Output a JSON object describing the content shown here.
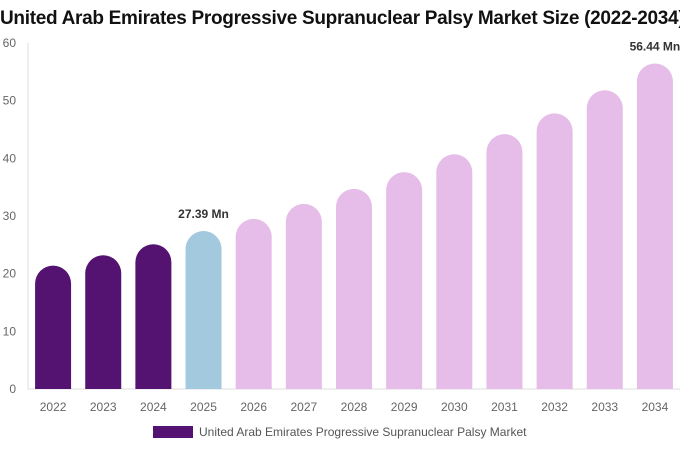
{
  "chart_data": {
    "type": "bar",
    "title": "United Arab Emirates Progressive Supranuclear Palsy Market Size (2022-2034)",
    "categories": [
      "2022",
      "2023",
      "2024",
      "2025",
      "2026",
      "2027",
      "2028",
      "2029",
      "2030",
      "2031",
      "2032",
      "2033",
      "2034"
    ],
    "series": [
      {
        "name": "United Arab Emirates Progressive Supranuclear Palsy Market",
        "values": [
          21.4,
          23.2,
          25.1,
          27.39,
          29.5,
          32.1,
          34.7,
          37.6,
          40.7,
          44.2,
          47.8,
          51.8,
          56.44
        ]
      }
    ],
    "data_labels": {
      "3": "27.39 Mn",
      "12": "56.44 Mn"
    },
    "ylim": [
      0,
      60
    ],
    "yticks": [
      0,
      10,
      20,
      30,
      40,
      50,
      60
    ],
    "grid": false,
    "legend": "bottom",
    "colors": {
      "historical": "#541371",
      "current": "#a3c9de",
      "forecast": "#e6bce8"
    }
  }
}
